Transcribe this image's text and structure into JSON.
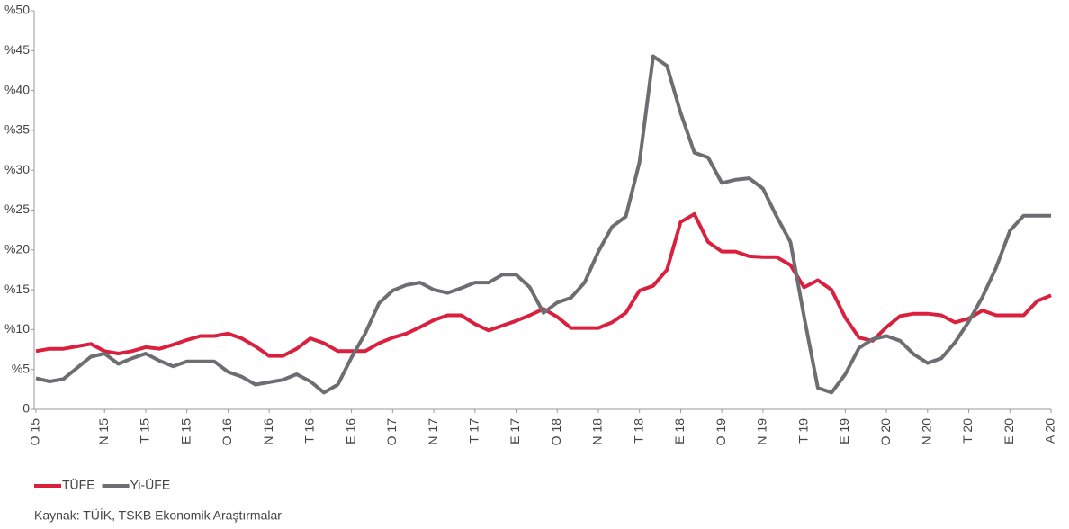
{
  "chart_data": {
    "type": "line",
    "categories": [
      "O 15",
      null,
      null,
      null,
      null,
      "N 15",
      null,
      null,
      "T 15",
      null,
      null,
      "E 15",
      null,
      null,
      "O 16",
      null,
      null,
      "N 16",
      null,
      null,
      "T 16",
      null,
      null,
      "E 16",
      null,
      null,
      "O 17",
      null,
      null,
      "N 17",
      null,
      null,
      "T 17",
      null,
      null,
      "E 17",
      null,
      null,
      "O 18",
      null,
      null,
      "N 18",
      null,
      null,
      "T 18",
      null,
      null,
      "E 18",
      null,
      null,
      "O 19",
      null,
      null,
      "N 19",
      null,
      null,
      "T 19",
      null,
      null,
      "E 19",
      null,
      null,
      "O 20",
      null,
      null,
      "N 20",
      null,
      null,
      "T 20",
      null,
      null,
      "E 20",
      null,
      null,
      "A 20"
    ],
    "series": [
      {
        "name": "TÜFE",
        "color": "#d9213f",
        "values": [
          7.3,
          7.6,
          7.6,
          7.9,
          8.2,
          7.3,
          7.0,
          7.3,
          7.8,
          7.6,
          8.1,
          8.7,
          9.2,
          9.2,
          9.5,
          8.9,
          7.9,
          6.7,
          6.7,
          7.6,
          8.9,
          8.3,
          7.3,
          7.3,
          7.3,
          8.3,
          9.0,
          9.5,
          10.3,
          11.2,
          11.8,
          11.8,
          10.7,
          9.9,
          10.5,
          11.1,
          11.8,
          12.6,
          11.6,
          10.2,
          10.2,
          10.2,
          10.9,
          12.1,
          14.9,
          15.5,
          17.5,
          23.5,
          24.5,
          21.0,
          19.8,
          19.8,
          19.2,
          19.1,
          19.1,
          18.1,
          15.3,
          16.2,
          15.0,
          11.5,
          9.0,
          8.6,
          10.3,
          11.7,
          12.0,
          12.0,
          11.8,
          10.9,
          11.4,
          12.4,
          11.8,
          11.8,
          11.8,
          13.6,
          14.3
        ]
      },
      {
        "name": "Yi-ÜFE",
        "color": "#6d6e71",
        "values": [
          3.9,
          3.5,
          3.8,
          5.2,
          6.6,
          7.0,
          5.7,
          6.4,
          7.0,
          6.1,
          5.4,
          6.0,
          6.0,
          6.0,
          4.7,
          4.1,
          3.1,
          3.4,
          3.7,
          4.4,
          3.5,
          2.1,
          3.1,
          6.5,
          9.5,
          13.3,
          14.9,
          15.6,
          15.9,
          15.0,
          14.6,
          15.2,
          15.9,
          15.9,
          16.9,
          16.9,
          15.3,
          12.1,
          13.4,
          14.0,
          15.9,
          19.8,
          22.9,
          24.2,
          31.0,
          44.3,
          43.1,
          37.2,
          32.2,
          31.6,
          28.4,
          28.8,
          29.0,
          27.7,
          24.2,
          21.0,
          11.6,
          2.7,
          2.1,
          4.4,
          7.7,
          8.8,
          9.2,
          8.6,
          6.9,
          5.8,
          6.4,
          8.4,
          11.0,
          14.1,
          17.8,
          22.4,
          24.3,
          24.3,
          24.3
        ]
      }
    ],
    "ylim": [
      0,
      50
    ],
    "yticks": [
      0,
      {
        "value": 5,
        "label": "%5"
      },
      {
        "value": 10,
        "label": "%10"
      },
      {
        "value": 15,
        "label": "%15"
      },
      {
        "value": 20,
        "label": "%20"
      },
      {
        "value": 25,
        "label": "%25"
      },
      {
        "value": 30,
        "label": "%30"
      },
      {
        "value": 35,
        "label": "%35"
      },
      {
        "value": 40,
        "label": "%40"
      },
      {
        "value": 45,
        "label": "%45"
      },
      {
        "value": 50,
        "label": "%50"
      }
    ],
    "source": "Kaynak: TÜİK, TSKB Ekonomik Araştırmalar"
  }
}
